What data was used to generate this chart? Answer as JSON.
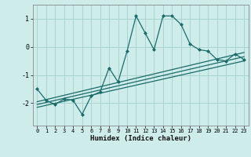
{
  "xlabel": "Humidex (Indice chaleur)",
  "ylabel": "",
  "background_color": "#ceecea",
  "grid_color": "#aad4d0",
  "line_color": "#1a6b6b",
  "x_data": [
    0,
    1,
    2,
    3,
    4,
    5,
    6,
    7,
    8,
    9,
    10,
    11,
    12,
    13,
    14,
    15,
    16,
    17,
    18,
    19,
    20,
    21,
    22,
    23
  ],
  "y_data": [
    -1.5,
    -1.9,
    -2.05,
    -1.85,
    -1.9,
    -2.4,
    -1.75,
    -1.6,
    -0.75,
    -1.25,
    -0.15,
    1.1,
    0.5,
    -0.1,
    1.1,
    1.1,
    0.8,
    0.1,
    -0.1,
    -0.15,
    -0.45,
    -0.5,
    -0.25,
    -0.45
  ],
  "reg_lines": [
    {
      "x": [
        0,
        23
      ],
      "y": [
        -2.15,
        -0.5
      ]
    },
    {
      "x": [
        0,
        23
      ],
      "y": [
        -2.05,
        -0.35
      ]
    },
    {
      "x": [
        0,
        23
      ],
      "y": [
        -1.95,
        -0.2
      ]
    }
  ],
  "xlim": [
    -0.5,
    23.5
  ],
  "ylim": [
    -2.8,
    1.5
  ],
  "yticks": [
    -2,
    -1,
    0,
    1
  ],
  "xticks": [
    0,
    1,
    2,
    3,
    4,
    5,
    6,
    7,
    8,
    9,
    10,
    11,
    12,
    13,
    14,
    15,
    16,
    17,
    18,
    19,
    20,
    21,
    22,
    23
  ]
}
